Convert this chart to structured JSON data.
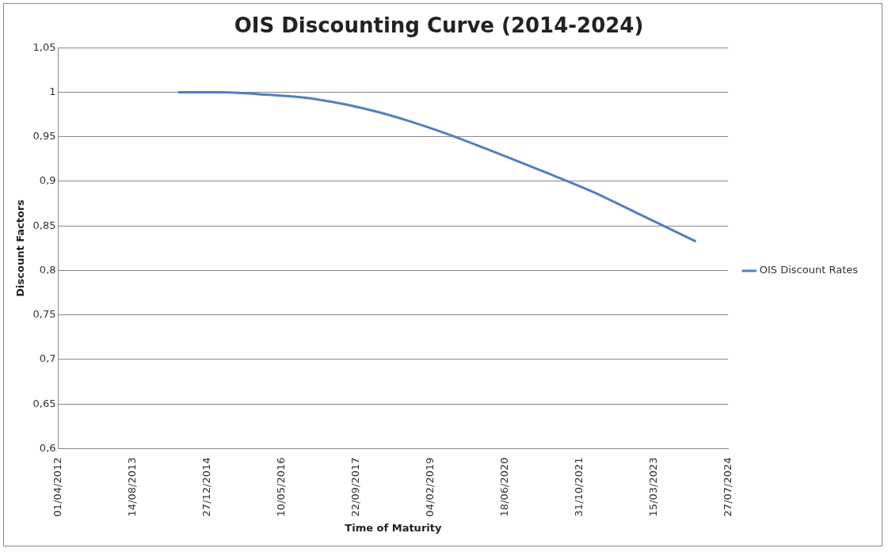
{
  "chart_data": {
    "type": "line",
    "title": "OIS Discounting Curve (2014-2024)",
    "xlabel": "Time of Maturity",
    "ylabel": "Discount Factors",
    "x": [
      "2014-06-20",
      "2015-04-06",
      "2015-11-25",
      "2017-01-03",
      "2018-02-13",
      "2019-03-25",
      "2020-03-08",
      "2021-02-17",
      "2022-02-01",
      "2023-01-15",
      "2023-12-17"
    ],
    "series": [
      {
        "name": "OIS Discount Rates",
        "color": "#4f81bd",
        "values": [
          1.0,
          1.0,
          0.998,
          0.992,
          0.978,
          0.957,
          0.935,
          0.912,
          0.888,
          0.86,
          0.833
        ]
      }
    ],
    "xlim": [
      "2012-04-01",
      "2024-07-27"
    ],
    "xticks": [
      {
        "value": "2012-04-01",
        "label": "01/04/2012"
      },
      {
        "value": "2013-08-14",
        "label": "14/08/2013"
      },
      {
        "value": "2014-12-27",
        "label": "27/12/2014"
      },
      {
        "value": "2016-05-10",
        "label": "10/05/2016"
      },
      {
        "value": "2017-09-22",
        "label": "22/09/2017"
      },
      {
        "value": "2019-02-04",
        "label": "04/02/2019"
      },
      {
        "value": "2020-06-18",
        "label": "18/06/2020"
      },
      {
        "value": "2021-10-31",
        "label": "31/10/2021"
      },
      {
        "value": "2023-03-15",
        "label": "15/03/2023"
      },
      {
        "value": "2024-07-27",
        "label": "27/07/2024"
      }
    ],
    "ylim": [
      0.6,
      1.05
    ],
    "yticks": [
      {
        "value": 0.6,
        "label": "0,6"
      },
      {
        "value": 0.65,
        "label": "0,65"
      },
      {
        "value": 0.7,
        "label": "0,7"
      },
      {
        "value": 0.75,
        "label": "0,75"
      },
      {
        "value": 0.8,
        "label": "0,8"
      },
      {
        "value": 0.85,
        "label": "0,85"
      },
      {
        "value": 0.9,
        "label": "0,9"
      },
      {
        "value": 0.95,
        "label": "0,95"
      },
      1,
      {
        "value": 1.05,
        "label": "1,05"
      }
    ],
    "grid": "y",
    "legend": "right",
    "marker": "none",
    "line_style": "solid"
  }
}
